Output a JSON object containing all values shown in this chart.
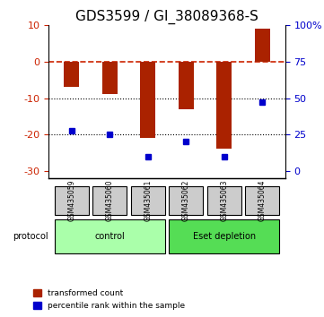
{
  "title": "GDS3599 / GI_38089368-S",
  "samples": [
    "GSM435059",
    "GSM435060",
    "GSM435061",
    "GSM435062",
    "GSM435063",
    "GSM435064"
  ],
  "red_bars": [
    -7,
    -9,
    -21,
    -13,
    -24,
    9
  ],
  "blue_dots": [
    -19,
    -20,
    -26,
    -22,
    -26,
    -11
  ],
  "ylim": [
    -32,
    10
  ],
  "yticks_left": [
    10,
    0,
    -10,
    -20,
    -30
  ],
  "yticks_right_vals": [
    100,
    75,
    50,
    25,
    0
  ],
  "yticks_right_pos": [
    10,
    0,
    -10,
    -20,
    -30
  ],
  "groups": [
    {
      "label": "control",
      "samples": [
        0,
        1,
        2
      ],
      "color": "#aaffaa"
    },
    {
      "label": "Eset depletion",
      "samples": [
        3,
        4,
        5
      ],
      "color": "#55ee55"
    }
  ],
  "group_label": "protocol",
  "bar_color": "#aa2200",
  "dot_color": "#0000cc",
  "dashed_line_color": "#cc2200",
  "bg_color": "#ffffff",
  "plot_bg": "#ffffff",
  "grid_color": "#000000",
  "xlabel_color": "#000000",
  "legend_red_label": "transformed count",
  "legend_blue_label": "percentile rank within the sample",
  "title_fontsize": 11,
  "tick_fontsize": 8,
  "bar_width": 0.4
}
